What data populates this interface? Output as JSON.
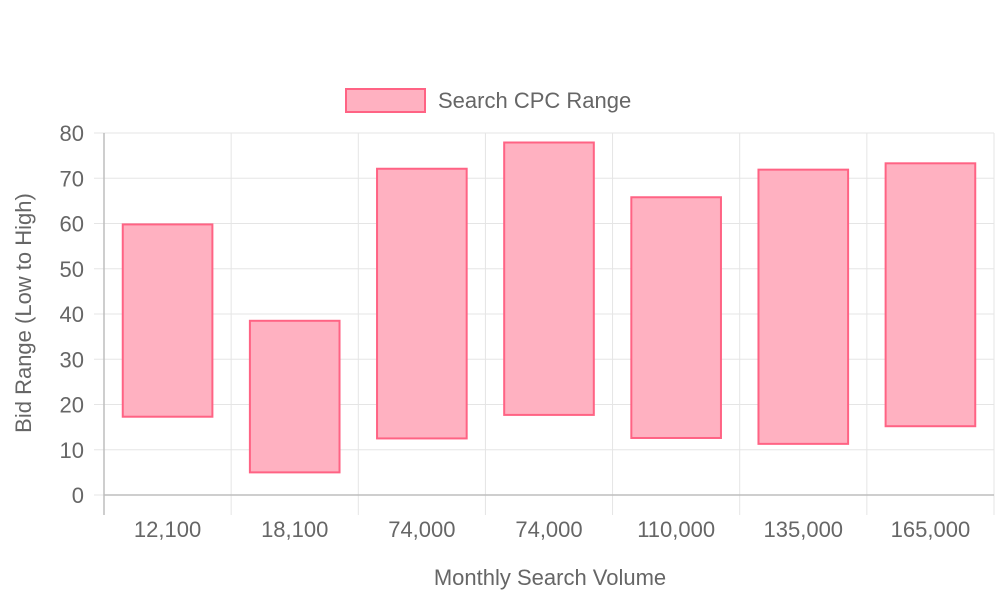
{
  "chart_data": {
    "type": "bar",
    "subtype": "floating-range",
    "legend": {
      "position": "top",
      "entries": [
        "Search CPC Range"
      ]
    },
    "xlabel": "Monthly Search Volume",
    "ylabel": "Bid Range (Low to High)",
    "ylim": [
      0,
      80
    ],
    "yticks": [
      0,
      10,
      20,
      30,
      40,
      50,
      60,
      70,
      80
    ],
    "grid": true,
    "categories": [
      "12,100",
      "18,100",
      "74,000",
      "74,000",
      "110,000",
      "135,000",
      "165,000"
    ],
    "series": [
      {
        "name": "Search CPC Range",
        "color": "#ffb1c1",
        "border_color": "#ff6384",
        "ranges": [
          [
            17.3,
            59.8
          ],
          [
            5.0,
            38.5
          ],
          [
            12.5,
            72.1
          ],
          [
            17.7,
            77.9
          ],
          [
            12.6,
            65.8
          ],
          [
            11.3,
            71.9
          ],
          [
            15.2,
            73.3
          ]
        ]
      }
    ]
  }
}
